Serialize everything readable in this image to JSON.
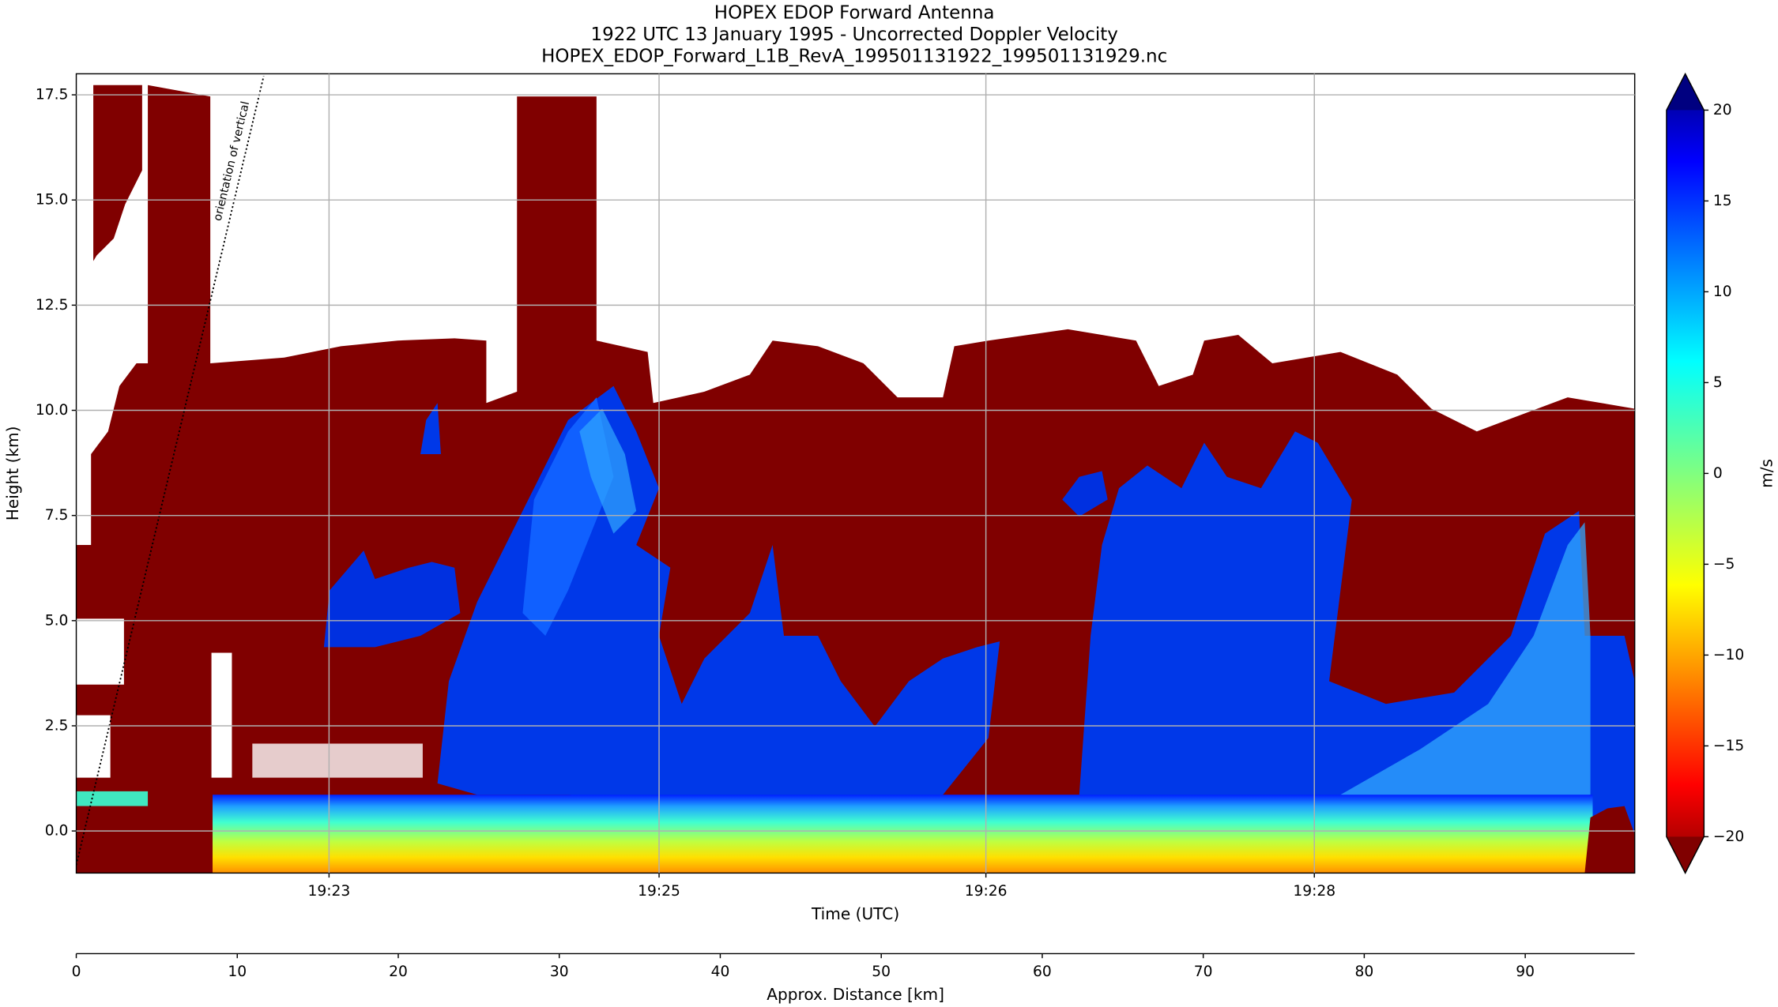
{
  "chart_data": {
    "type": "heatmap",
    "title": "HOPEX EDOP Forward Antenna",
    "subtitle": [
      "1922 UTC 13 January 1995 - Uncorrected Doppler Velocity",
      "HOPEX_EDOP_Forward_L1B_RevA_199501131922_199501131929.nc"
    ],
    "ylabel": "Height (km)",
    "xlabel": "Time (UTC)",
    "x2label": "Approx. Distance [km]",
    "colorbar_label": "m/s",
    "annotation": "orientation of vertical",
    "colormap": "jet",
    "grid": true,
    "xlim": [
      0,
      96.8
    ],
    "xticks": [
      0,
      10,
      20,
      30,
      40,
      50,
      60,
      70,
      80,
      90
    ],
    "time_ticks": [
      {
        "value": 15.7,
        "label": "19:23"
      },
      {
        "value": 36.2,
        "label": "19:25"
      },
      {
        "value": 56.5,
        "label": "19:26"
      },
      {
        "value": 76.9,
        "label": "19:28"
      }
    ],
    "ylim": [
      -1,
      18
    ],
    "yticks": [
      {
        "value": 0,
        "label": "0.0"
      },
      2.5,
      {
        "value": 5,
        "label": "5.0"
      },
      7.5,
      {
        "value": 10,
        "label": "10.0"
      },
      12.5,
      {
        "value": 15,
        "label": "15.0"
      },
      17.5
    ],
    "clim": [
      -20,
      20
    ],
    "cticks": [
      {
        "value": -20,
        "label": "−20"
      },
      {
        "value": -15,
        "label": "−15"
      },
      {
        "value": -10,
        "label": "−10"
      },
      {
        "value": -5,
        "label": "−5"
      },
      0,
      5,
      10,
      15,
      20
    ]
  }
}
